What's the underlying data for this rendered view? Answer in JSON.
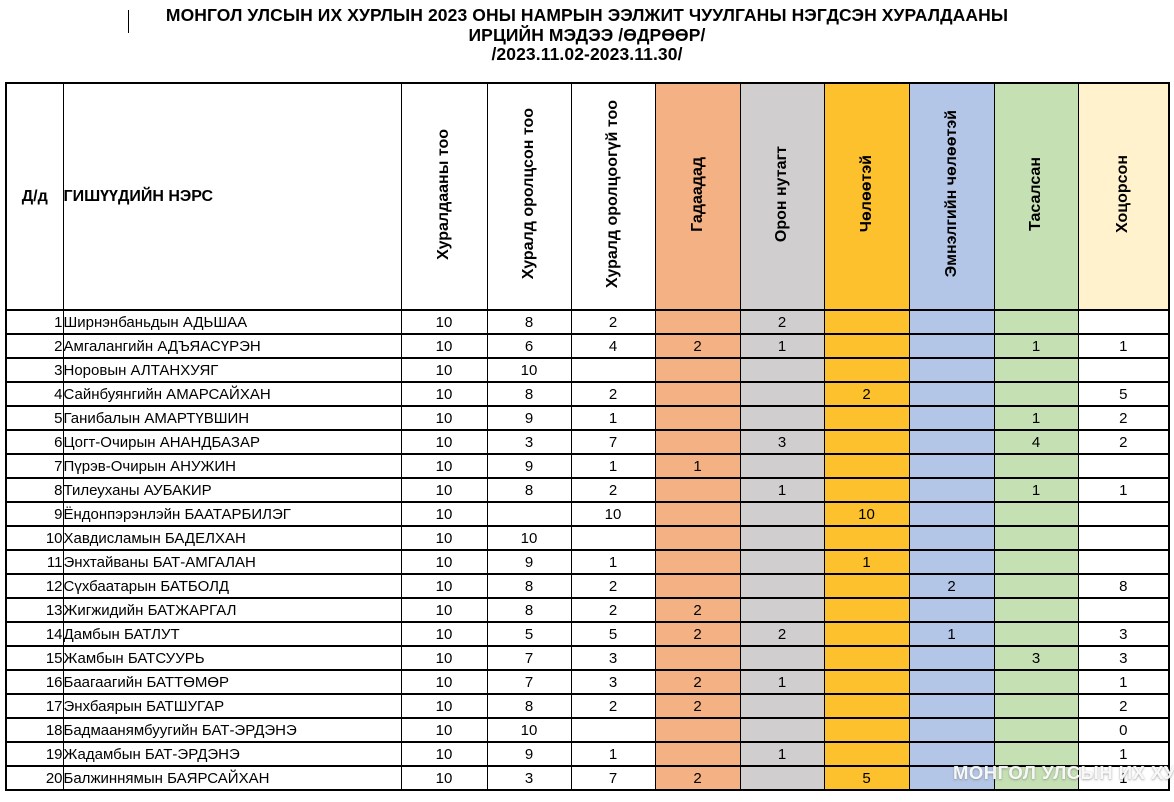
{
  "title": {
    "line1": "МОНГОЛ УЛСЫН ИХ ХУРЛЫН 2023 ОНЫ НАМРЫН ЭЭЛЖИТ ЧУУЛГАНЫ НЭГДСЭН ХУРАЛДААНЫ",
    "line2": "ИРЦИЙН МЭДЭЭ /ӨДРӨӨР/",
    "line3": "/2023.11.02-2023.11.30/"
  },
  "watermark": "МОНГОЛ УЛСЫН ИХ ХУРАЛ",
  "colors": {
    "abroad": "#F4B183",
    "local_area": "#D0CECE",
    "on_leave": "#FCC12C",
    "medical_leave": "#B4C6E7",
    "missed": "#C5E0B3",
    "late_header": "#FFF2CC",
    "white": "#FFFFFF",
    "border": "#000000"
  },
  "table": {
    "headers": {
      "index": "Д/д",
      "name": "ГИШҮҮДИЙН НЭРС"
    },
    "columns": [
      {
        "id": "total-sessions",
        "label": "Хуралдааны тоо",
        "header_bg": "#FFFFFF",
        "cell_bg": "#FFFFFF"
      },
      {
        "id": "attended",
        "label": "Хуралд оролцсон тоо",
        "header_bg": "#FFFFFF",
        "cell_bg": "#FFFFFF"
      },
      {
        "id": "not-attended",
        "label": "Хуралд оролцоогүй тоо",
        "header_bg": "#FFFFFF",
        "cell_bg": "#FFFFFF"
      },
      {
        "id": "abroad",
        "label": "Гадаадад",
        "header_bg": "#F4B183",
        "cell_bg": "#F4B183"
      },
      {
        "id": "local-area",
        "label": "Орон нутагт",
        "header_bg": "#D0CECE",
        "cell_bg": "#D0CECE"
      },
      {
        "id": "on-leave",
        "label": "Чөлөөтэй",
        "header_bg": "#FCC12C",
        "cell_bg": "#FCC12C"
      },
      {
        "id": "medical-leave",
        "label": "Эмнэлгийн чөлөөтэй",
        "header_bg": "#B4C6E7",
        "cell_bg": "#B4C6E7"
      },
      {
        "id": "missed",
        "label": "Тасалсан",
        "header_bg": "#C5E0B3",
        "cell_bg": "#C5E0B3"
      },
      {
        "id": "late",
        "label": "Хоцорсон",
        "header_bg": "#FFF2CC",
        "cell_bg": "#FFFFFF"
      }
    ],
    "rows": [
      {
        "index": "1",
        "name": "Ширнэнбаньдын АДЬШАА",
        "values": [
          "10",
          "8",
          "2",
          "",
          "2",
          "",
          "",
          "",
          ""
        ]
      },
      {
        "index": "2",
        "name": "Амгалангийн АДЪЯАСҮРЭН",
        "values": [
          "10",
          "6",
          "4",
          "2",
          "1",
          "",
          "",
          "1",
          "1"
        ]
      },
      {
        "index": "3",
        "name": "Норовын АЛТАНХУЯГ",
        "values": [
          "10",
          "10",
          "",
          "",
          "",
          "",
          "",
          "",
          ""
        ]
      },
      {
        "index": "4",
        "name": "Сайнбуянгийн АМАРСАЙХАН",
        "values": [
          "10",
          "8",
          "2",
          "",
          "",
          "2",
          "",
          "",
          "5"
        ]
      },
      {
        "index": "5",
        "name": "Ганибалын АМАРТҮВШИН",
        "values": [
          "10",
          "9",
          "1",
          "",
          "",
          "",
          "",
          "1",
          "2"
        ]
      },
      {
        "index": "6",
        "name": "Цогт-Очирын АНАНДБАЗАР",
        "values": [
          "10",
          "3",
          "7",
          "",
          "3",
          "",
          "",
          "4",
          "2"
        ]
      },
      {
        "index": "7",
        "name": "Пүрэв-Очирын АНУЖИН",
        "values": [
          "10",
          "9",
          "1",
          "1",
          "",
          "",
          "",
          "",
          ""
        ]
      },
      {
        "index": "8",
        "name": "Тилеуханы АУБАКИР",
        "values": [
          "10",
          "8",
          "2",
          "",
          "1",
          "",
          "",
          "1",
          "1"
        ]
      },
      {
        "index": "9",
        "name": "Ёндонпэрэнлэйн БААТАРБИЛЭГ",
        "values": [
          "10",
          "",
          "10",
          "",
          "",
          "10",
          "",
          "",
          ""
        ]
      },
      {
        "index": "10",
        "name": "Хавдисламын БАДЕЛХАН",
        "values": [
          "10",
          "10",
          "",
          "",
          "",
          "",
          "",
          "",
          ""
        ]
      },
      {
        "index": "11",
        "name": "Энхтайваны БАТ-АМГАЛАН",
        "values": [
          "10",
          "9",
          "1",
          "",
          "",
          "1",
          "",
          "",
          ""
        ]
      },
      {
        "index": "12",
        "name": "Сүхбаатарын БАТБОЛД",
        "values": [
          "10",
          "8",
          "2",
          "",
          "",
          "",
          "2",
          "",
          "8"
        ]
      },
      {
        "index": "13",
        "name": "Жигжидийн БАТЖАРГАЛ",
        "values": [
          "10",
          "8",
          "2",
          "2",
          "",
          "",
          "",
          "",
          ""
        ]
      },
      {
        "index": "14",
        "name": "Дамбын БАТЛУТ",
        "values": [
          "10",
          "5",
          "5",
          "2",
          "2",
          "",
          "1",
          "",
          "3"
        ]
      },
      {
        "index": "15",
        "name": "Жамбын БАТСУУРЬ",
        "values": [
          "10",
          "7",
          "3",
          "",
          "",
          "",
          "",
          "3",
          "3"
        ]
      },
      {
        "index": "16",
        "name": "Баагаагийн БАТТӨМӨР",
        "values": [
          "10",
          "7",
          "3",
          "2",
          "1",
          "",
          "",
          "",
          "1"
        ]
      },
      {
        "index": "17",
        "name": "Энхбаярын БАТШУГАР",
        "values": [
          "10",
          "8",
          "2",
          "2",
          "",
          "",
          "",
          "",
          "2"
        ]
      },
      {
        "index": "18",
        "name": "Бадмаанямбуугийн БАТ-ЭРДЭНЭ",
        "values": [
          "10",
          "10",
          "",
          "",
          "",
          "",
          "",
          "",
          "0"
        ]
      },
      {
        "index": "19",
        "name": "Жадамбын БАТ-ЭРДЭНЭ",
        "values": [
          "10",
          "9",
          "1",
          "",
          "1",
          "",
          "",
          "",
          "1"
        ]
      },
      {
        "index": "20",
        "name": "Балжиннямын БАЯРСАЙХАН",
        "values": [
          "10",
          "3",
          "7",
          "2",
          "",
          "5",
          "",
          "",
          "1"
        ]
      }
    ]
  }
}
